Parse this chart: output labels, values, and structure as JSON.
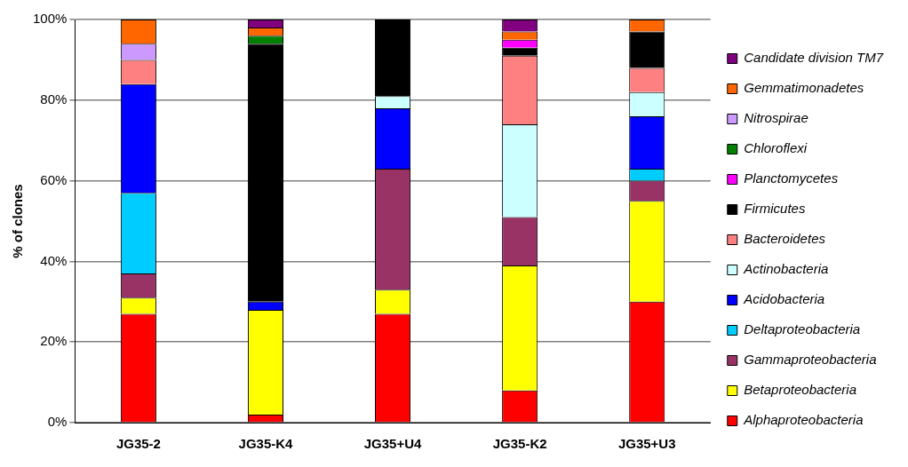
{
  "chart_data": {
    "type": "bar",
    "stacked": true,
    "ylabel": "% of clones",
    "categories": [
      "JG35-2",
      "JG35-K4",
      "JG35+U4",
      "JG35-K2",
      "JG35+U3"
    ],
    "ylim": [
      0,
      100
    ],
    "yticks": [
      {
        "value": 0,
        "label": "0%"
      },
      {
        "value": 20,
        "label": "20%"
      },
      {
        "value": 40,
        "label": "40%"
      },
      {
        "value": 60,
        "label": "60%"
      },
      {
        "value": 80,
        "label": "80%"
      },
      {
        "value": 100,
        "label": "100%"
      }
    ],
    "grid": "y",
    "legend": "right",
    "series": [
      {
        "name": "Alphaproteobacteria",
        "color": "#ff0000",
        "values": [
          27,
          2,
          27,
          8,
          30
        ]
      },
      {
        "name": "Betaproteobacteria",
        "color": "#ffff00",
        "values": [
          4,
          26,
          6,
          31,
          25
        ]
      },
      {
        "name": "Gammaproteobacteria",
        "color": "#993366",
        "values": [
          6,
          0,
          30,
          12,
          5
        ]
      },
      {
        "name": "Deltaproteobacteria",
        "color": "#00ccff",
        "values": [
          20,
          0,
          0,
          0,
          3
        ]
      },
      {
        "name": "Acidobacteria",
        "color": "#0000ff",
        "values": [
          27,
          2,
          15,
          0,
          13
        ]
      },
      {
        "name": "Actinobacteria",
        "color": "#ccffff",
        "values": [
          0,
          0,
          3,
          23,
          6
        ]
      },
      {
        "name": "Bacteroidetes",
        "color": "#ff8080",
        "values": [
          6,
          0,
          0,
          17,
          6
        ]
      },
      {
        "name": "Firmicutes",
        "color": "#000000",
        "values": [
          0,
          64,
          19,
          2,
          9
        ]
      },
      {
        "name": "Planctomycetes",
        "color": "#ff00ff",
        "values": [
          0,
          0,
          0,
          2,
          0
        ]
      },
      {
        "name": "Chloroflexi",
        "color": "#008000",
        "values": [
          0,
          2,
          0,
          0,
          0
        ]
      },
      {
        "name": "Nitrospirae",
        "color": "#cc99ff",
        "values": [
          4,
          0,
          0,
          0,
          0
        ]
      },
      {
        "name": "Gemmatimonadetes",
        "color": "#ff6600",
        "values": [
          6,
          2,
          0,
          2,
          3
        ]
      },
      {
        "name": "Candidate division TM7",
        "color": "#800080",
        "values": [
          0,
          2,
          0,
          3,
          0
        ]
      }
    ]
  }
}
